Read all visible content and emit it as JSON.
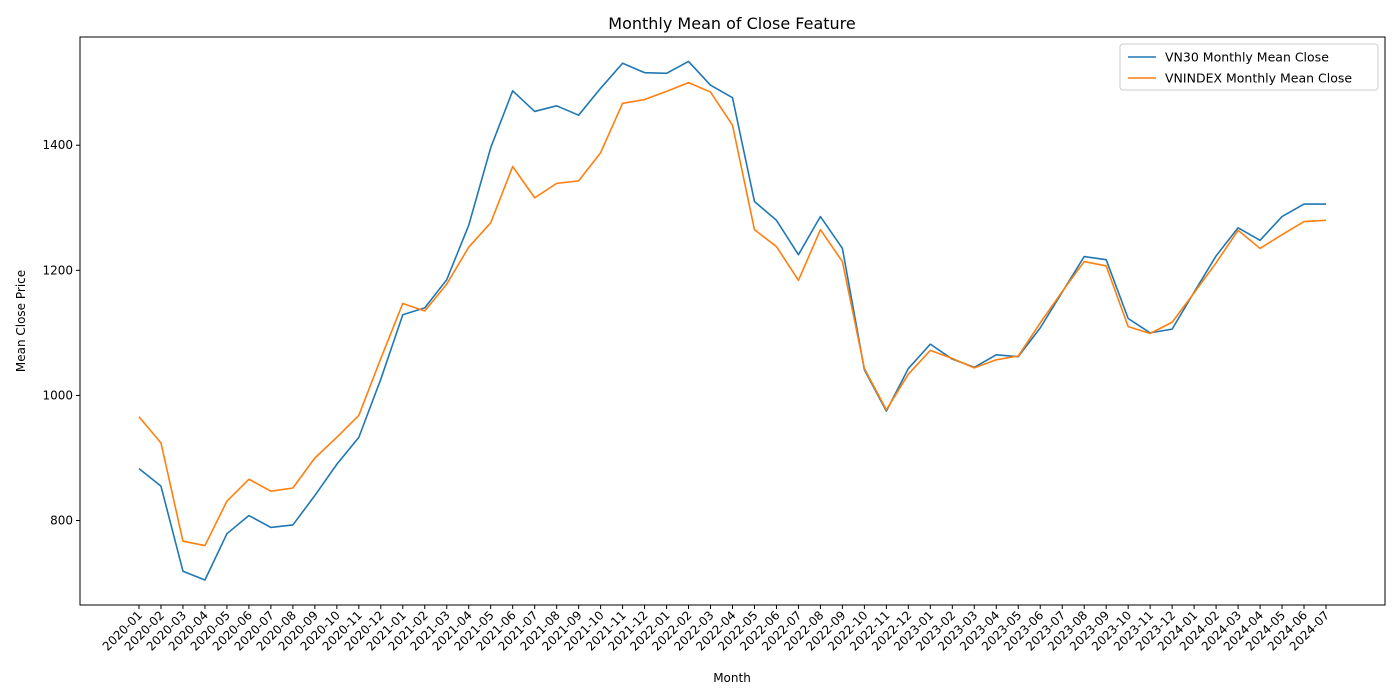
{
  "chart_data": {
    "type": "line",
    "title": "Monthly Mean of Close Feature",
    "xlabel": "Month",
    "ylabel": "Mean Close Price",
    "ylim": [
      665,
      1573
    ],
    "yticks": [
      800,
      1000,
      1200,
      1400
    ],
    "grid": false,
    "legend_position": "top-right",
    "categories": [
      "2020-01",
      "2020-02",
      "2020-03",
      "2020-04",
      "2020-05",
      "2020-06",
      "2020-07",
      "2020-08",
      "2020-09",
      "2020-10",
      "2020-11",
      "2020-12",
      "2021-01",
      "2021-02",
      "2021-03",
      "2021-04",
      "2021-05",
      "2021-06",
      "2021-07",
      "2021-08",
      "2021-09",
      "2021-10",
      "2021-11",
      "2021-12",
      "2022-01",
      "2022-02",
      "2022-03",
      "2022-04",
      "2022-05",
      "2022-06",
      "2022-07",
      "2022-08",
      "2022-09",
      "2022-10",
      "2022-11",
      "2022-12",
      "2023-01",
      "2023-02",
      "2023-03",
      "2023-04",
      "2023-05",
      "2023-06",
      "2023-07",
      "2023-08",
      "2023-09",
      "2023-10",
      "2023-11",
      "2023-12",
      "2024-01",
      "2024-02",
      "2024-03",
      "2024-04",
      "2024-05",
      "2024-06",
      "2024-07"
    ],
    "series": [
      {
        "name": "VN30 Monthly Mean Close",
        "color": "#1f77b4",
        "values": [
          883,
          855,
          719,
          705,
          779,
          808,
          789,
          793,
          840,
          890,
          933,
          1026,
          1129,
          1140,
          1185,
          1272,
          1396,
          1487,
          1454,
          1463,
          1448,
          1491,
          1531,
          1516,
          1515,
          1534,
          1496,
          1476,
          1310,
          1280,
          1225,
          1286,
          1235,
          1041,
          975,
          1043,
          1082,
          1058,
          1045,
          1065,
          1062,
          1108,
          1165,
          1222,
          1217,
          1123,
          1100,
          1106,
          1165,
          1223,
          1268,
          1248,
          1286,
          1306,
          1306
        ]
      },
      {
        "name": "VNINDEX Monthly Mean Close",
        "color": "#ff7f0e",
        "values": [
          966,
          924,
          767,
          760,
          831,
          866,
          847,
          852,
          900,
          933,
          968,
          1059,
          1147,
          1135,
          1178,
          1237,
          1276,
          1366,
          1316,
          1339,
          1343,
          1388,
          1467,
          1473,
          1486,
          1500,
          1485,
          1432,
          1265,
          1238,
          1184,
          1265,
          1214,
          1043,
          977,
          1034,
          1072,
          1059,
          1044,
          1057,
          1063,
          1116,
          1166,
          1214,
          1207,
          1110,
          1099,
          1117,
          1164,
          1212,
          1264,
          1235,
          1257,
          1278,
          1280
        ]
      }
    ]
  }
}
